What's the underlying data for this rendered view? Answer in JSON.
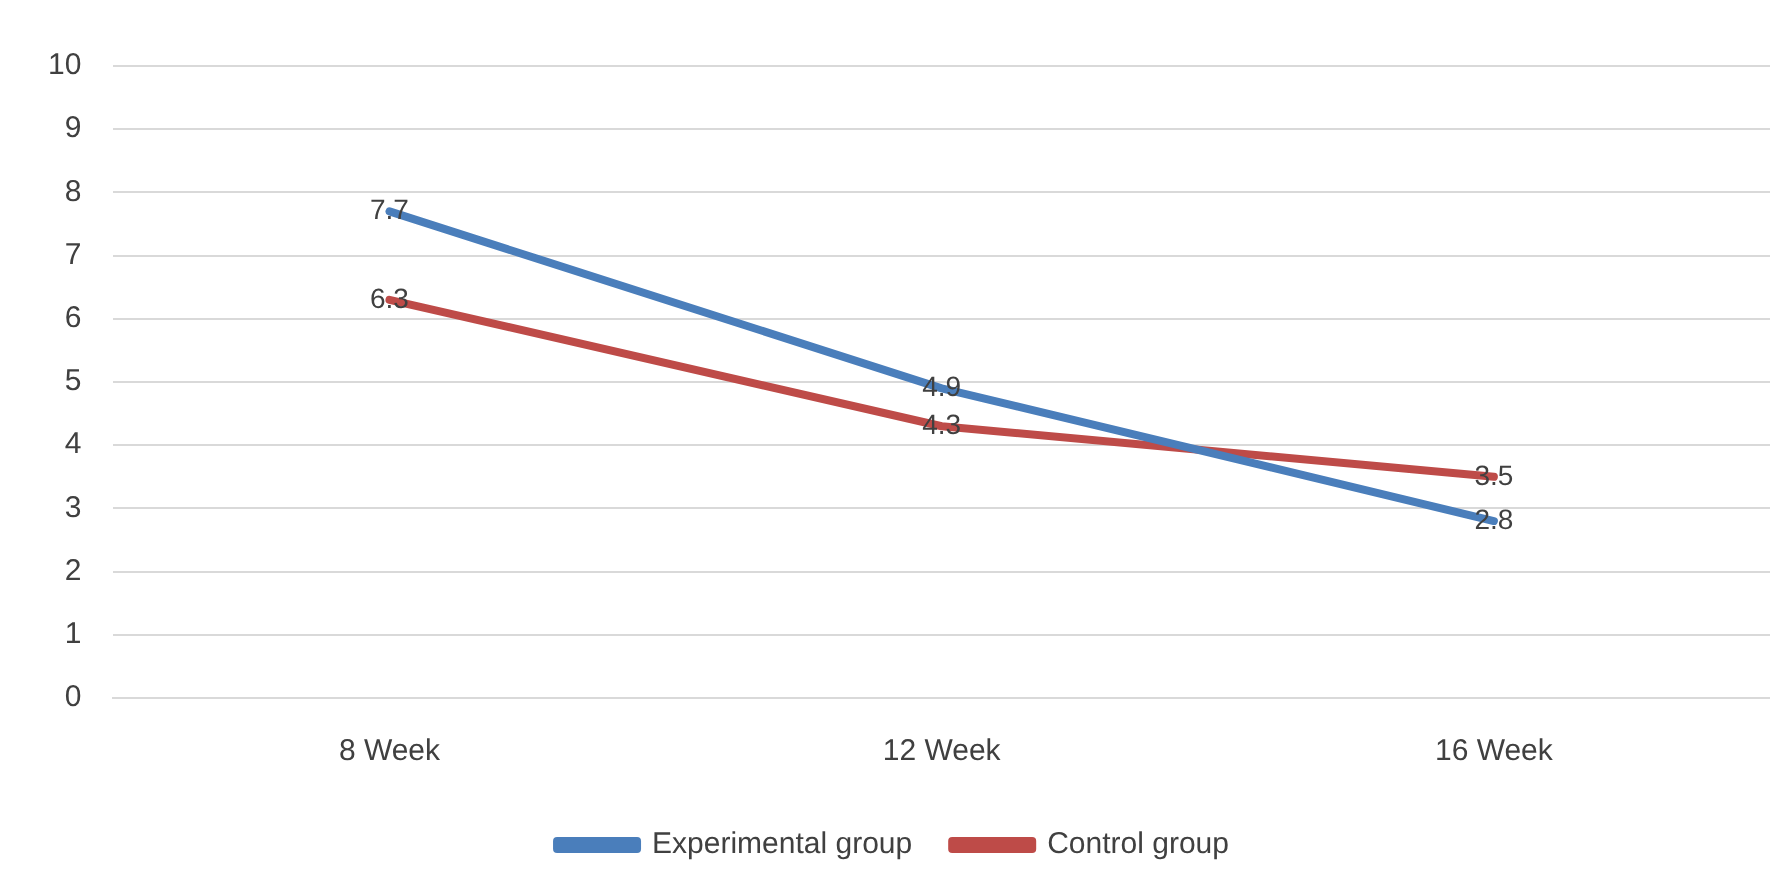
{
  "chart_data": {
    "type": "line",
    "categories": [
      "8 Week",
      "12 Week",
      "16 Week"
    ],
    "series": [
      {
        "name": "Experimental group",
        "color": "#4a7ebb",
        "values": [
          7.7,
          4.9,
          2.8
        ]
      },
      {
        "name": "Control group",
        "color": "#be4b48",
        "values": [
          6.3,
          4.3,
          3.5
        ]
      }
    ],
    "ylim": [
      0,
      10
    ],
    "yticks": [
      0,
      1,
      2,
      3,
      4,
      5,
      6,
      7,
      8,
      9,
      10
    ],
    "grid": "y",
    "legend": "bottom",
    "data_labels": true,
    "marker": "none",
    "line_style": "solid"
  }
}
